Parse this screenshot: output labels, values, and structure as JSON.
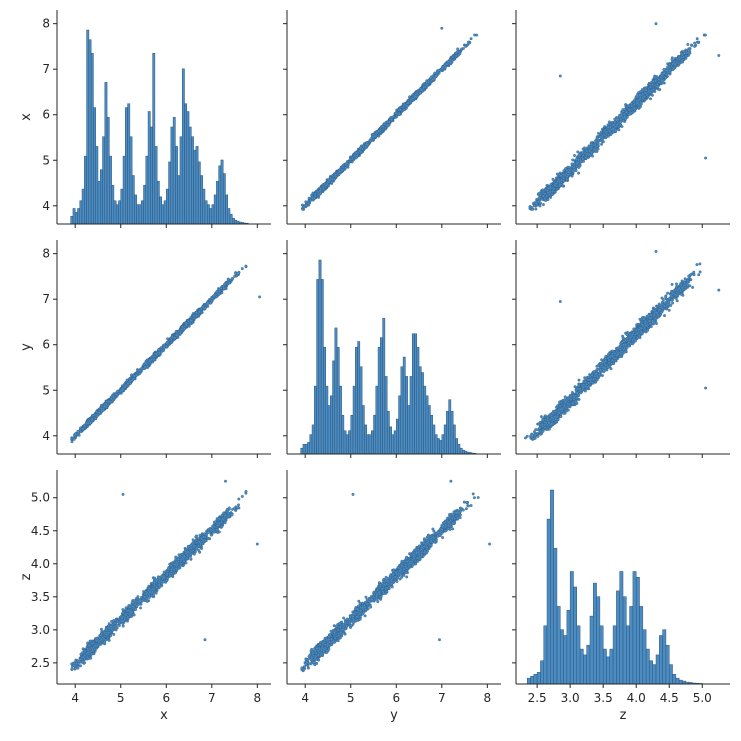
{
  "figure": {
    "type": "pairplot",
    "variables": [
      "x",
      "y",
      "z"
    ]
  },
  "colors": {
    "fill": "#4c8cc0",
    "stroke": "#2a5680",
    "axis": "#262626"
  },
  "axes": {
    "x": {
      "label": "x",
      "ticks": [
        "4",
        "5",
        "6",
        "7",
        "8"
      ],
      "range": [
        3.6,
        8.3
      ]
    },
    "y": {
      "label": "y",
      "ticks": [
        "4",
        "5",
        "6",
        "7",
        "8"
      ],
      "range": [
        3.6,
        8.3
      ]
    },
    "z": {
      "label": "z",
      "ticks": [
        "2.5",
        "3.0",
        "3.5",
        "4.0",
        "4.5",
        "5.0"
      ],
      "range": [
        2.18,
        5.42
      ]
    }
  },
  "chart_data": [
    {
      "panel": "x-hist",
      "type": "histogram",
      "variable": "x",
      "bins": [
        [
          3.9,
          0.04
        ],
        [
          3.95,
          0.08
        ],
        [
          4.0,
          0.06
        ],
        [
          4.05,
          0.08
        ],
        [
          4.1,
          0.12
        ],
        [
          4.15,
          0.18
        ],
        [
          4.2,
          0.35
        ],
        [
          4.25,
          1.0
        ],
        [
          4.3,
          0.95
        ],
        [
          4.35,
          0.88
        ],
        [
          4.4,
          0.6
        ],
        [
          4.45,
          0.4
        ],
        [
          4.5,
          0.22
        ],
        [
          4.55,
          0.28
        ],
        [
          4.6,
          0.45
        ],
        [
          4.65,
          0.73
        ],
        [
          4.7,
          0.55
        ],
        [
          4.75,
          0.35
        ],
        [
          4.8,
          0.2
        ],
        [
          4.85,
          0.12
        ],
        [
          4.9,
          0.1
        ],
        [
          4.95,
          0.12
        ],
        [
          5.0,
          0.18
        ],
        [
          5.05,
          0.35
        ],
        [
          5.1,
          0.6
        ],
        [
          5.15,
          0.62
        ],
        [
          5.2,
          0.45
        ],
        [
          5.25,
          0.25
        ],
        [
          5.3,
          0.15
        ],
        [
          5.35,
          0.1
        ],
        [
          5.4,
          0.1
        ],
        [
          5.45,
          0.12
        ],
        [
          5.5,
          0.2
        ],
        [
          5.55,
          0.35
        ],
        [
          5.6,
          0.58
        ],
        [
          5.65,
          0.5
        ],
        [
          5.7,
          0.88
        ],
        [
          5.75,
          0.4
        ],
        [
          5.8,
          0.22
        ],
        [
          5.85,
          0.14
        ],
        [
          5.9,
          0.1
        ],
        [
          5.95,
          0.12
        ],
        [
          6.0,
          0.18
        ],
        [
          6.05,
          0.32
        ],
        [
          6.1,
          0.5
        ],
        [
          6.15,
          0.55
        ],
        [
          6.2,
          0.4
        ],
        [
          6.25,
          0.25
        ],
        [
          6.3,
          0.45
        ],
        [
          6.35,
          0.8
        ],
        [
          6.4,
          0.62
        ],
        [
          6.45,
          0.58
        ],
        [
          6.5,
          0.5
        ],
        [
          6.55,
          0.45
        ],
        [
          6.6,
          0.38
        ],
        [
          6.65,
          0.4
        ],
        [
          6.7,
          0.32
        ],
        [
          6.75,
          0.25
        ],
        [
          6.8,
          0.18
        ],
        [
          6.85,
          0.12
        ],
        [
          6.9,
          0.1
        ],
        [
          6.95,
          0.08
        ],
        [
          7.0,
          0.1
        ],
        [
          7.05,
          0.15
        ],
        [
          7.1,
          0.22
        ],
        [
          7.15,
          0.3
        ],
        [
          7.2,
          0.33
        ],
        [
          7.25,
          0.26
        ],
        [
          7.3,
          0.15
        ],
        [
          7.35,
          0.08
        ],
        [
          7.4,
          0.05
        ],
        [
          7.45,
          0.03
        ],
        [
          7.5,
          0.02
        ],
        [
          7.55,
          0.015
        ],
        [
          7.6,
          0.01
        ],
        [
          7.65,
          0.008
        ],
        [
          7.7,
          0.005
        ],
        [
          7.75,
          0.004
        ]
      ]
    },
    {
      "panel": "y-hist",
      "type": "histogram",
      "variable": "y",
      "bins": [
        [
          3.9,
          0.03
        ],
        [
          3.95,
          0.05
        ],
        [
          4.0,
          0.05
        ],
        [
          4.05,
          0.06
        ],
        [
          4.1,
          0.1
        ],
        [
          4.15,
          0.15
        ],
        [
          4.2,
          0.35
        ],
        [
          4.25,
          0.9
        ],
        [
          4.3,
          1.0
        ],
        [
          4.35,
          0.9
        ],
        [
          4.4,
          0.55
        ],
        [
          4.45,
          0.35
        ],
        [
          4.5,
          0.25
        ],
        [
          4.55,
          0.3
        ],
        [
          4.6,
          0.48
        ],
        [
          4.65,
          0.65
        ],
        [
          4.7,
          0.55
        ],
        [
          4.75,
          0.35
        ],
        [
          4.8,
          0.2
        ],
        [
          4.85,
          0.12
        ],
        [
          4.9,
          0.1
        ],
        [
          4.95,
          0.12
        ],
        [
          5.0,
          0.2
        ],
        [
          5.05,
          0.35
        ],
        [
          5.1,
          0.55
        ],
        [
          5.15,
          0.58
        ],
        [
          5.2,
          0.45
        ],
        [
          5.25,
          0.25
        ],
        [
          5.3,
          0.15
        ],
        [
          5.35,
          0.1
        ],
        [
          5.4,
          0.1
        ],
        [
          5.45,
          0.12
        ],
        [
          5.5,
          0.2
        ],
        [
          5.55,
          0.35
        ],
        [
          5.6,
          0.55
        ],
        [
          5.65,
          0.6
        ],
        [
          5.7,
          0.7
        ],
        [
          5.75,
          0.4
        ],
        [
          5.8,
          0.22
        ],
        [
          5.85,
          0.14
        ],
        [
          5.9,
          0.1
        ],
        [
          5.95,
          0.12
        ],
        [
          6.0,
          0.18
        ],
        [
          6.05,
          0.3
        ],
        [
          6.1,
          0.45
        ],
        [
          6.15,
          0.5
        ],
        [
          6.2,
          0.4
        ],
        [
          6.25,
          0.25
        ],
        [
          6.3,
          0.4
        ],
        [
          6.35,
          0.62
        ],
        [
          6.4,
          0.62
        ],
        [
          6.45,
          0.55
        ],
        [
          6.5,
          0.45
        ],
        [
          6.55,
          0.42
        ],
        [
          6.6,
          0.35
        ],
        [
          6.65,
          0.3
        ],
        [
          6.7,
          0.25
        ],
        [
          6.75,
          0.2
        ],
        [
          6.8,
          0.15
        ],
        [
          6.85,
          0.1
        ],
        [
          6.9,
          0.08
        ],
        [
          6.95,
          0.07
        ],
        [
          7.0,
          0.1
        ],
        [
          7.05,
          0.15
        ],
        [
          7.1,
          0.22
        ],
        [
          7.15,
          0.28
        ],
        [
          7.2,
          0.22
        ],
        [
          7.25,
          0.15
        ],
        [
          7.3,
          0.08
        ],
        [
          7.35,
          0.05
        ],
        [
          7.4,
          0.03
        ],
        [
          7.45,
          0.02
        ],
        [
          7.5,
          0.015
        ],
        [
          7.55,
          0.01
        ],
        [
          7.6,
          0.008
        ],
        [
          7.65,
          0.005
        ],
        [
          7.7,
          0.004
        ]
      ]
    },
    {
      "panel": "z-hist",
      "type": "histogram",
      "variable": "z",
      "bins": [
        [
          2.35,
          0.03
        ],
        [
          2.4,
          0.04
        ],
        [
          2.45,
          0.05
        ],
        [
          2.5,
          0.06
        ],
        [
          2.55,
          0.12
        ],
        [
          2.6,
          0.3
        ],
        [
          2.65,
          0.85
        ],
        [
          2.7,
          1.0
        ],
        [
          2.75,
          0.7
        ],
        [
          2.8,
          0.4
        ],
        [
          2.85,
          0.28
        ],
        [
          2.9,
          0.25
        ],
        [
          2.95,
          0.38
        ],
        [
          3.0,
          0.58
        ],
        [
          3.05,
          0.5
        ],
        [
          3.1,
          0.3
        ],
        [
          3.15,
          0.18
        ],
        [
          3.2,
          0.15
        ],
        [
          3.25,
          0.2
        ],
        [
          3.3,
          0.35
        ],
        [
          3.35,
          0.52
        ],
        [
          3.4,
          0.45
        ],
        [
          3.45,
          0.3
        ],
        [
          3.5,
          0.18
        ],
        [
          3.55,
          0.14
        ],
        [
          3.6,
          0.18
        ],
        [
          3.65,
          0.3
        ],
        [
          3.7,
          0.48
        ],
        [
          3.75,
          0.58
        ],
        [
          3.8,
          0.45
        ],
        [
          3.85,
          0.3
        ],
        [
          3.9,
          0.4
        ],
        [
          3.95,
          0.58
        ],
        [
          4.0,
          0.55
        ],
        [
          4.05,
          0.4
        ],
        [
          4.1,
          0.28
        ],
        [
          4.15,
          0.18
        ],
        [
          4.2,
          0.12
        ],
        [
          4.25,
          0.1
        ],
        [
          4.3,
          0.15
        ],
        [
          4.35,
          0.25
        ],
        [
          4.4,
          0.28
        ],
        [
          4.45,
          0.2
        ],
        [
          4.5,
          0.1
        ],
        [
          4.55,
          0.05
        ],
        [
          4.6,
          0.03
        ],
        [
          4.65,
          0.02
        ],
        [
          4.7,
          0.015
        ],
        [
          4.75,
          0.01
        ],
        [
          4.8,
          0.008
        ],
        [
          4.85,
          0.005
        ],
        [
          4.9,
          0.004
        ],
        [
          4.95,
          0.003
        ]
      ]
    },
    {
      "panel": "scatter",
      "type": "scatter",
      "relation": {
        "x_range": [
          3.75,
          8.1
        ],
        "y_equals_x": true,
        "z_equals": "0.68*x - 0.25"
      },
      "outliers": {
        "xz": [
          [
            5.05,
            5.05
          ],
          [
            6.85,
            2.85
          ],
          [
            7.3,
            5.25
          ],
          [
            8.0,
            4.3
          ]
        ],
        "yz": [
          [
            5.05,
            5.05
          ],
          [
            6.95,
            2.85
          ],
          [
            7.2,
            5.25
          ],
          [
            8.05,
            4.3
          ]
        ]
      }
    }
  ]
}
